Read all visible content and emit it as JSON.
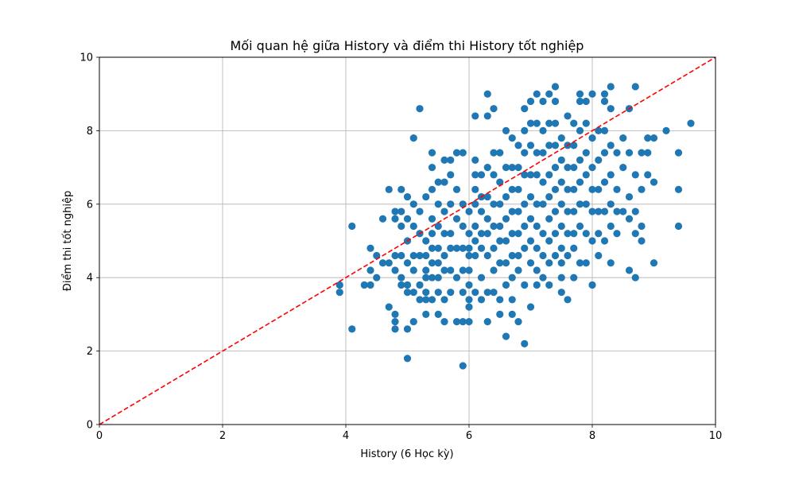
{
  "chart_data": {
    "type": "scatter",
    "title": "Mối quan hệ giữa History và điểm thi History tốt nghiệp",
    "xlabel": "History (6 Học kỳ)",
    "ylabel": "Điểm thi tốt nghiệp",
    "xlim": [
      0,
      10
    ],
    "ylim": [
      0,
      10
    ],
    "xticks": [
      "0",
      "2",
      "4",
      "6",
      "8",
      "10"
    ],
    "yticks": [
      "0",
      "2",
      "4",
      "6",
      "8",
      "10"
    ],
    "grid": true,
    "point_color": "#1f77b4",
    "reference_line": {
      "x": [
        0,
        10
      ],
      "y": [
        0,
        10
      ],
      "color": "#ff0000",
      "style": "dashed"
    },
    "series": [
      {
        "x": [
          3.9,
          3.9,
          4.1,
          4.1,
          4.3,
          4.4,
          4.4,
          4.4,
          4.5,
          4.5,
          4.6,
          4.6,
          4.7,
          4.7,
          4.7,
          4.8,
          4.8,
          4.8,
          4.8,
          4.8,
          4.8,
          4.8,
          4.9,
          4.9,
          4.9,
          4.9,
          4.9,
          4.9,
          5.0,
          5.0,
          5.0,
          5.0,
          5.0,
          5.0,
          5.0,
          5.0,
          5.1,
          5.1,
          5.1,
          5.1,
          5.1,
          5.1,
          5.1,
          5.2,
          5.2,
          5.2,
          5.2,
          5.2,
          5.2,
          5.3,
          5.3,
          5.3,
          5.3,
          5.3,
          5.3,
          5.3,
          5.3,
          5.4,
          5.4,
          5.4,
          5.4,
          5.4,
          5.4,
          5.4,
          5.4,
          5.4,
          5.5,
          5.5,
          5.5,
          5.5,
          5.5,
          5.5,
          5.5,
          5.5,
          5.6,
          5.6,
          5.6,
          5.6,
          5.6,
          5.6,
          5.6,
          5.6,
          5.7,
          5.7,
          5.7,
          5.7,
          5.7,
          5.7,
          5.7,
          5.8,
          5.8,
          5.8,
          5.8,
          5.8,
          5.8,
          5.9,
          5.9,
          5.9,
          5.9,
          5.9,
          5.9,
          5.9,
          5.9,
          6.0,
          6.0,
          6.0,
          6.0,
          6.0,
          6.0,
          6.0,
          6.0,
          6.0,
          6.1,
          6.1,
          6.1,
          6.1,
          6.1,
          6.1,
          6.1,
          6.1,
          6.1,
          6.2,
          6.2,
          6.2,
          6.2,
          6.2,
          6.2,
          6.2,
          6.3,
          6.3,
          6.3,
          6.3,
          6.3,
          6.3,
          6.3,
          6.3,
          6.3,
          6.4,
          6.4,
          6.4,
          6.4,
          6.4,
          6.4,
          6.4,
          6.4,
          6.5,
          6.5,
          6.5,
          6.5,
          6.5,
          6.5,
          6.5,
          6.5,
          6.6,
          6.6,
          6.6,
          6.6,
          6.6,
          6.6,
          6.6,
          6.6,
          6.7,
          6.7,
          6.7,
          6.7,
          6.7,
          6.7,
          6.7,
          6.7,
          6.7,
          6.8,
          6.8,
          6.8,
          6.8,
          6.8,
          6.8,
          6.8,
          6.8,
          6.9,
          6.9,
          6.9,
          6.9,
          6.9,
          6.9,
          6.9,
          6.9,
          6.9,
          7.0,
          7.0,
          7.0,
          7.0,
          7.0,
          7.0,
          7.0,
          7.0,
          7.0,
          7.1,
          7.1,
          7.1,
          7.1,
          7.1,
          7.1,
          7.1,
          7.1,
          7.1,
          7.2,
          7.2,
          7.2,
          7.2,
          7.2,
          7.2,
          7.2,
          7.2,
          7.3,
          7.3,
          7.3,
          7.3,
          7.3,
          7.3,
          7.3,
          7.3,
          7.3,
          7.4,
          7.4,
          7.4,
          7.4,
          7.4,
          7.4,
          7.4,
          7.4,
          7.4,
          7.5,
          7.5,
          7.5,
          7.5,
          7.5,
          7.5,
          7.5,
          7.5,
          7.5,
          7.6,
          7.6,
          7.6,
          7.6,
          7.6,
          7.6,
          7.6,
          7.6,
          7.7,
          7.7,
          7.7,
          7.7,
          7.7,
          7.7,
          7.7,
          7.7,
          7.8,
          7.8,
          7.8,
          7.8,
          7.8,
          7.8,
          7.8,
          7.8,
          7.9,
          7.9,
          7.9,
          7.9,
          7.9,
          7.9,
          7.9,
          8.0,
          8.0,
          8.0,
          8.0,
          8.0,
          8.0,
          8.0,
          8.1,
          8.1,
          8.1,
          8.1,
          8.1,
          8.1,
          8.2,
          8.2,
          8.2,
          8.2,
          8.2,
          8.2,
          8.2,
          8.3,
          8.3,
          8.3,
          8.3,
          8.3,
          8.3,
          8.3,
          8.4,
          8.4,
          8.4,
          8.4,
          8.5,
          8.5,
          8.5,
          8.6,
          8.6,
          8.6,
          8.6,
          8.6,
          8.7,
          8.7,
          8.7,
          8.7,
          8.7,
          8.8,
          8.8,
          8.8,
          8.8,
          8.9,
          8.9,
          8.9,
          9.0,
          9.0,
          9.0,
          9.2,
          9.4,
          9.4,
          9.4,
          9.6
        ],
        "y": [
          3.8,
          3.6,
          5.4,
          2.6,
          3.8,
          4.8,
          4.2,
          3.8,
          4.6,
          4.0,
          5.6,
          4.4,
          6.4,
          4.4,
          3.2,
          5.8,
          5.6,
          4.6,
          4.2,
          3.0,
          2.8,
          2.6,
          6.4,
          5.8,
          5.4,
          4.6,
          4.0,
          3.8,
          6.2,
          5.6,
          5.0,
          4.4,
          3.8,
          3.6,
          2.6,
          1.8,
          7.8,
          6.0,
          5.4,
          4.6,
          4.2,
          3.6,
          2.8,
          8.6,
          5.8,
          5.2,
          4.6,
          3.8,
          3.4,
          6.2,
          5.0,
          4.6,
          4.2,
          4.0,
          3.6,
          3.4,
          3.0,
          7.4,
          7.0,
          6.4,
          5.6,
          5.2,
          4.8,
          4.4,
          4.0,
          3.4,
          6.6,
          6.0,
          5.4,
          4.8,
          4.4,
          4.0,
          3.6,
          3.0,
          7.2,
          6.6,
          5.8,
          5.2,
          4.6,
          4.2,
          3.4,
          2.8,
          7.2,
          6.8,
          6.0,
          5.2,
          4.8,
          4.2,
          3.6,
          7.4,
          6.4,
          5.6,
          4.8,
          4.0,
          2.8,
          7.4,
          6.0,
          5.4,
          4.8,
          4.2,
          3.6,
          2.8,
          1.6,
          5.8,
          5.2,
          4.8,
          4.6,
          4.2,
          3.8,
          3.4,
          3.2,
          2.8,
          8.4,
          7.2,
          6.8,
          6.4,
          6.0,
          5.4,
          5.0,
          4.6,
          3.6,
          6.8,
          6.2,
          5.8,
          5.2,
          4.8,
          4.0,
          3.4,
          9.0,
          8.4,
          7.0,
          6.2,
          5.6,
          5.2,
          4.6,
          3.6,
          2.8,
          8.6,
          7.4,
          6.8,
          6.0,
          5.4,
          4.8,
          4.2,
          3.6,
          7.4,
          6.6,
          6.0,
          5.4,
          5.0,
          4.4,
          3.4,
          3.0,
          8.0,
          7.0,
          6.2,
          5.6,
          5.0,
          4.4,
          3.8,
          2.4,
          7.8,
          7.0,
          6.4,
          5.8,
          5.2,
          4.6,
          4.0,
          3.4,
          3.0,
          7.6,
          7.0,
          6.4,
          5.8,
          5.2,
          4.6,
          4.2,
          2.8,
          8.6,
          8.0,
          7.4,
          6.8,
          6.0,
          5.4,
          4.8,
          3.8,
          2.2,
          8.8,
          8.2,
          7.6,
          6.8,
          6.2,
          5.6,
          5.0,
          4.4,
          3.2,
          9.0,
          8.2,
          7.4,
          6.8,
          6.0,
          5.4,
          4.8,
          4.2,
          3.8,
          8.8,
          8.0,
          7.4,
          6.6,
          6.0,
          5.2,
          4.6,
          4.0,
          9.0,
          8.2,
          7.6,
          6.8,
          6.2,
          5.6,
          5.0,
          4.4,
          3.8,
          9.2,
          8.8,
          8.2,
          7.6,
          7.0,
          6.4,
          5.8,
          5.2,
          4.6,
          7.8,
          7.2,
          6.6,
          6.0,
          5.4,
          4.8,
          4.4,
          4.0,
          3.6,
          8.4,
          7.6,
          7.0,
          6.4,
          5.8,
          5.2,
          4.6,
          3.4,
          8.2,
          7.6,
          7.0,
          6.4,
          5.8,
          5.2,
          4.8,
          4.0,
          9.0,
          8.8,
          8.0,
          7.2,
          6.6,
          6.0,
          5.4,
          4.4,
          8.8,
          8.2,
          7.4,
          6.8,
          6.0,
          5.2,
          4.4,
          9.0,
          7.8,
          7.0,
          6.4,
          5.8,
          5.0,
          3.8,
          8.0,
          7.2,
          6.4,
          5.8,
          5.2,
          4.6,
          9.0,
          8.8,
          8.0,
          7.4,
          6.6,
          5.8,
          5.0,
          9.2,
          8.6,
          7.6,
          6.8,
          6.0,
          5.4,
          4.4,
          7.4,
          6.4,
          5.8,
          5.2,
          7.8,
          7.0,
          5.8,
          8.6,
          7.4,
          6.2,
          5.6,
          4.2,
          9.2,
          6.8,
          5.8,
          5.2,
          4.0,
          7.4,
          6.4,
          5.4,
          5.0,
          7.8,
          7.4,
          6.8,
          7.8,
          6.6,
          4.4,
          8.0,
          7.4,
          6.4,
          5.4,
          8.2
        ]
      }
    ]
  }
}
